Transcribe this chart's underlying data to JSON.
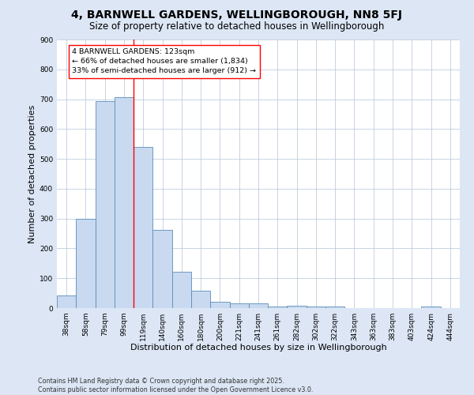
{
  "title": "4, BARNWELL GARDENS, WELLINGBOROUGH, NN8 5FJ",
  "subtitle": "Size of property relative to detached houses in Wellingborough",
  "xlabel": "Distribution of detached houses by size in Wellingborough",
  "ylabel": "Number of detached properties",
  "categories": [
    "38sqm",
    "58sqm",
    "79sqm",
    "99sqm",
    "119sqm",
    "140sqm",
    "160sqm",
    "180sqm",
    "200sqm",
    "221sqm",
    "241sqm",
    "261sqm",
    "282sqm",
    "302sqm",
    "322sqm",
    "343sqm",
    "363sqm",
    "383sqm",
    "403sqm",
    "424sqm",
    "444sqm"
  ],
  "values": [
    42,
    300,
    693,
    706,
    540,
    262,
    122,
    58,
    20,
    15,
    15,
    4,
    8,
    5,
    5,
    0,
    0,
    0,
    0,
    5,
    0
  ],
  "bar_color": "#c8d9f0",
  "bar_edge_color": "#5b8db8",
  "vline_color": "red",
  "annotation_text": "4 BARNWELL GARDENS: 123sqm\n← 66% of detached houses are smaller (1,834)\n33% of semi-detached houses are larger (912) →",
  "annotation_box_color": "white",
  "annotation_box_edge": "red",
  "ylim": [
    0,
    900
  ],
  "yticks": [
    0,
    100,
    200,
    300,
    400,
    500,
    600,
    700,
    800,
    900
  ],
  "bg_color": "#dce6f5",
  "plot_bg_color": "white",
  "grid_color": "#b0c4d8",
  "footer": "Contains HM Land Registry data © Crown copyright and database right 2025.\nContains public sector information licensed under the Open Government Licence v3.0.",
  "title_fontsize": 10,
  "subtitle_fontsize": 8.5,
  "xlabel_fontsize": 8,
  "ylabel_fontsize": 8,
  "tick_fontsize": 6.5,
  "annotation_fontsize": 6.8,
  "footer_fontsize": 5.8
}
